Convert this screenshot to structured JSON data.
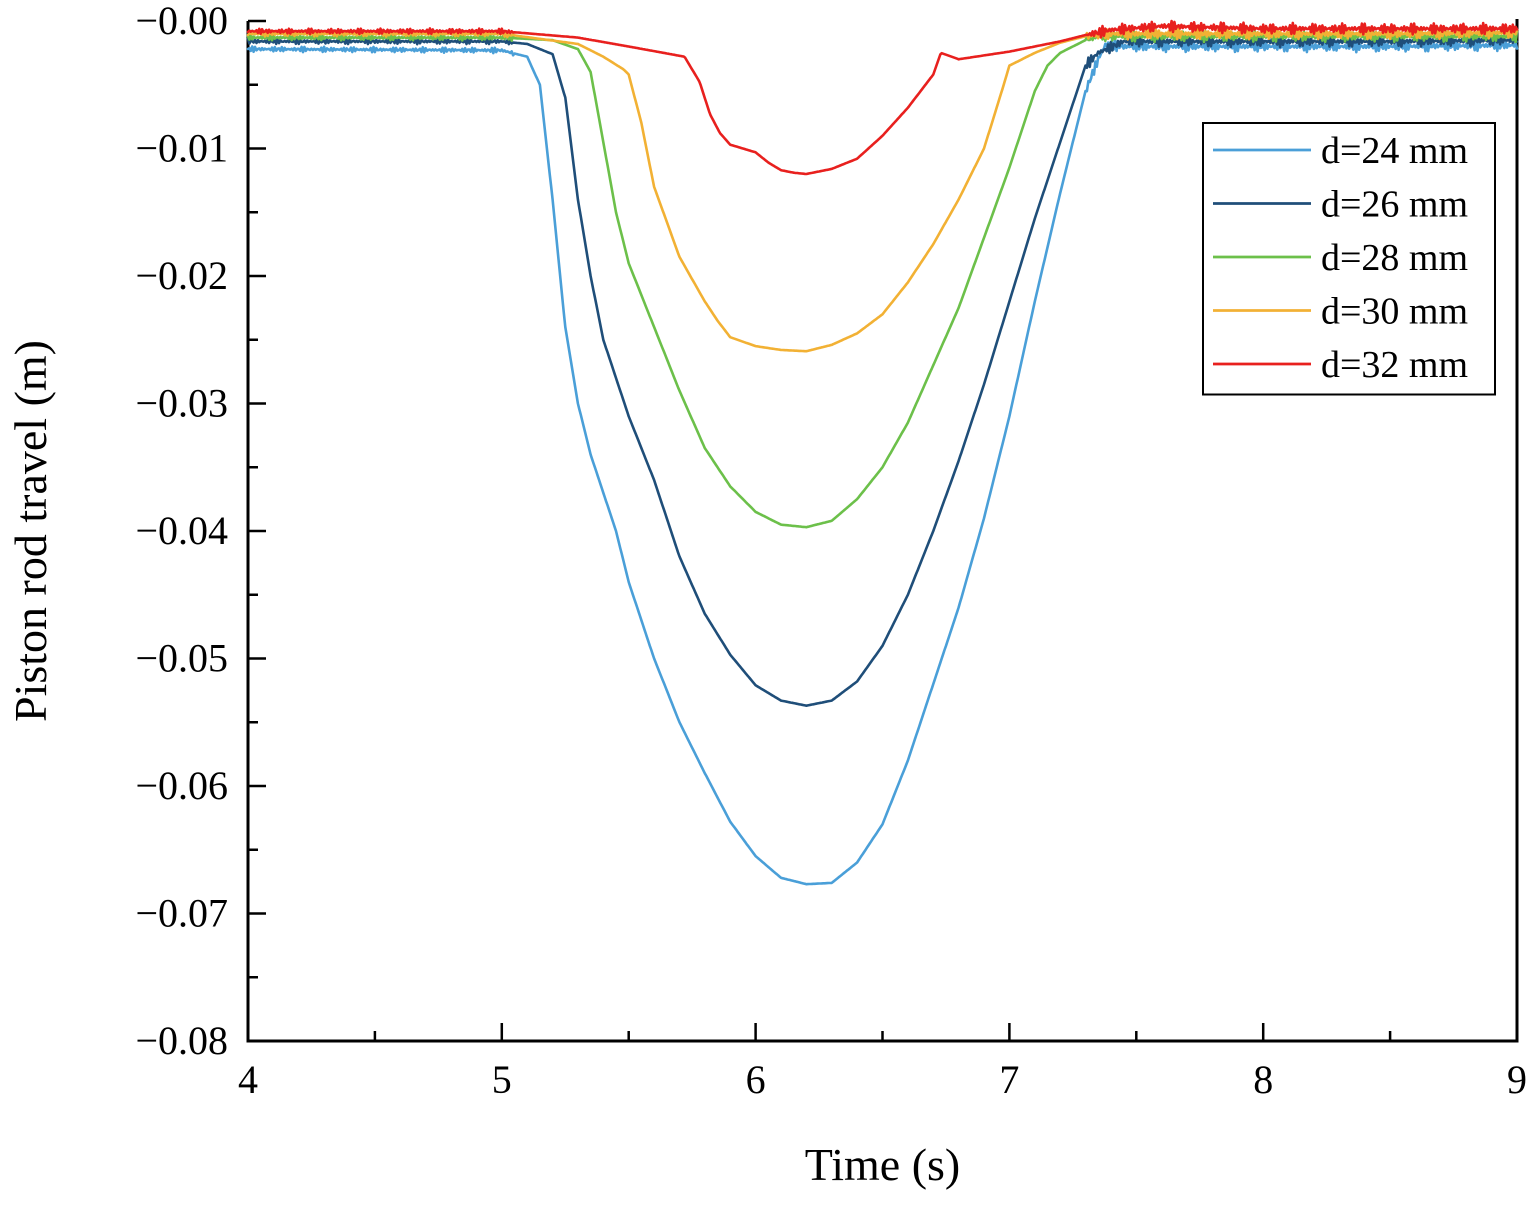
{
  "chart_data": {
    "type": "line",
    "title": "",
    "xlabel": "Time (s)",
    "ylabel": "Piston rod travel (m)",
    "xlim": [
      4,
      9
    ],
    "ylim": [
      -0.08,
      0.0
    ],
    "xticks": [
      4,
      5,
      6,
      7,
      8,
      9
    ],
    "xtick_labels": [
      "4",
      "5",
      "6",
      "7",
      "8",
      "9"
    ],
    "yticks": [
      0.0,
      -0.01,
      -0.02,
      -0.03,
      -0.04,
      -0.05,
      -0.06,
      -0.07,
      -0.08
    ],
    "ytick_labels": [
      "−0.00",
      "−0.01",
      "−0.02",
      "−0.03",
      "−0.04",
      "−0.05",
      "−0.06",
      "−0.07",
      "−0.08"
    ],
    "grid": false,
    "legend_position": "top-right",
    "series": [
      {
        "name": "d=24 mm",
        "color": "#4a9fd8",
        "x": [
          4.0,
          5.0,
          5.1,
          5.15,
          5.2,
          5.25,
          5.3,
          5.35,
          5.4,
          5.45,
          5.5,
          5.6,
          5.7,
          5.8,
          5.9,
          6.0,
          6.1,
          6.2,
          6.3,
          6.4,
          6.5,
          6.6,
          6.7,
          6.8,
          6.9,
          7.0,
          7.1,
          7.2,
          7.3,
          7.35,
          7.38,
          7.45,
          8.0,
          8.5,
          9.0
        ],
        "y": [
          -0.0022,
          -0.0023,
          -0.0028,
          -0.005,
          -0.014,
          -0.024,
          -0.03,
          -0.034,
          -0.037,
          -0.04,
          -0.044,
          -0.05,
          -0.055,
          -0.059,
          -0.0628,
          -0.0655,
          -0.0672,
          -0.0677,
          -0.0676,
          -0.066,
          -0.063,
          -0.058,
          -0.052,
          -0.046,
          -0.039,
          -0.031,
          -0.022,
          -0.0135,
          -0.0055,
          -0.003,
          -0.0018,
          -0.002,
          -0.002,
          -0.002,
          -0.0019
        ]
      },
      {
        "name": "d=26 mm",
        "color": "#1f4e79",
        "x": [
          4.0,
          5.0,
          5.1,
          5.2,
          5.25,
          5.3,
          5.35,
          5.4,
          5.45,
          5.5,
          5.6,
          5.7,
          5.8,
          5.9,
          6.0,
          6.1,
          6.2,
          6.3,
          6.4,
          6.5,
          6.6,
          6.7,
          6.8,
          6.9,
          7.0,
          7.1,
          7.2,
          7.3,
          7.35,
          7.45,
          8.0,
          8.5,
          9.0
        ],
        "y": [
          -0.0016,
          -0.0016,
          -0.0018,
          -0.0026,
          -0.006,
          -0.014,
          -0.02,
          -0.025,
          -0.028,
          -0.031,
          -0.036,
          -0.042,
          -0.0465,
          -0.0497,
          -0.0521,
          -0.0533,
          -0.0537,
          -0.0533,
          -0.0518,
          -0.049,
          -0.045,
          -0.04,
          -0.0345,
          -0.0285,
          -0.022,
          -0.0155,
          -0.0095,
          -0.0035,
          -0.0025,
          -0.0016,
          -0.0016,
          -0.0016,
          -0.0015
        ]
      },
      {
        "name": "d=28 mm",
        "color": "#6cc04a",
        "x": [
          4.0,
          5.0,
          5.2,
          5.3,
          5.35,
          5.4,
          5.45,
          5.5,
          5.6,
          5.7,
          5.8,
          5.9,
          6.0,
          6.1,
          6.2,
          6.3,
          6.4,
          6.5,
          6.6,
          6.7,
          6.8,
          6.9,
          7.0,
          7.1,
          7.15,
          7.2,
          7.3,
          7.35,
          7.45,
          8.0,
          8.5,
          9.0
        ],
        "y": [
          -0.0013,
          -0.0013,
          -0.0015,
          -0.0022,
          -0.004,
          -0.0095,
          -0.015,
          -0.019,
          -0.024,
          -0.029,
          -0.0335,
          -0.0365,
          -0.0385,
          -0.0395,
          -0.0397,
          -0.0392,
          -0.0375,
          -0.035,
          -0.0315,
          -0.027,
          -0.0225,
          -0.017,
          -0.0115,
          -0.0055,
          -0.0035,
          -0.0025,
          -0.0015,
          -0.0012,
          -0.0012,
          -0.0012,
          -0.0012,
          -0.0012
        ]
      },
      {
        "name": "d=30 mm",
        "color": "#f2b134",
        "x": [
          4.0,
          5.0,
          5.3,
          5.4,
          5.48,
          5.5,
          5.55,
          5.6,
          5.7,
          5.8,
          5.85,
          5.9,
          6.0,
          6.1,
          6.2,
          6.3,
          6.4,
          6.5,
          6.6,
          6.7,
          6.8,
          6.9,
          6.97,
          7.0,
          7.1,
          7.2,
          7.3,
          7.4,
          8.0,
          8.5,
          9.0
        ],
        "y": [
          -0.001,
          -0.001,
          -0.0018,
          -0.0028,
          -0.0038,
          -0.0042,
          -0.008,
          -0.013,
          -0.0185,
          -0.022,
          -0.0235,
          -0.0248,
          -0.0255,
          -0.0258,
          -0.0259,
          -0.0254,
          -0.0245,
          -0.023,
          -0.0205,
          -0.0175,
          -0.014,
          -0.01,
          -0.0055,
          -0.0035,
          -0.0025,
          -0.0017,
          -0.0012,
          -0.001,
          -0.001,
          -0.001,
          -0.0009
        ]
      },
      {
        "name": "d=32 mm",
        "color": "#e8201e",
        "x": [
          4.0,
          5.0,
          5.3,
          5.5,
          5.72,
          5.78,
          5.82,
          5.86,
          5.9,
          5.95,
          6.0,
          6.05,
          6.1,
          6.15,
          6.2,
          6.3,
          6.4,
          6.5,
          6.6,
          6.7,
          6.73,
          6.8,
          7.0,
          7.2,
          7.3,
          7.4,
          7.6,
          8.0,
          8.5,
          9.0
        ],
        "y": [
          -0.0008,
          -0.0008,
          -0.0013,
          -0.002,
          -0.0028,
          -0.0048,
          -0.0073,
          -0.0088,
          -0.0097,
          -0.01,
          -0.0103,
          -0.0111,
          -0.0117,
          -0.0119,
          -0.012,
          -0.0116,
          -0.0108,
          -0.009,
          -0.0068,
          -0.0042,
          -0.0025,
          -0.003,
          -0.0024,
          -0.0016,
          -0.0011,
          -0.0007,
          -0.0004,
          -0.0006,
          -0.0006,
          -0.0006
        ]
      }
    ]
  }
}
